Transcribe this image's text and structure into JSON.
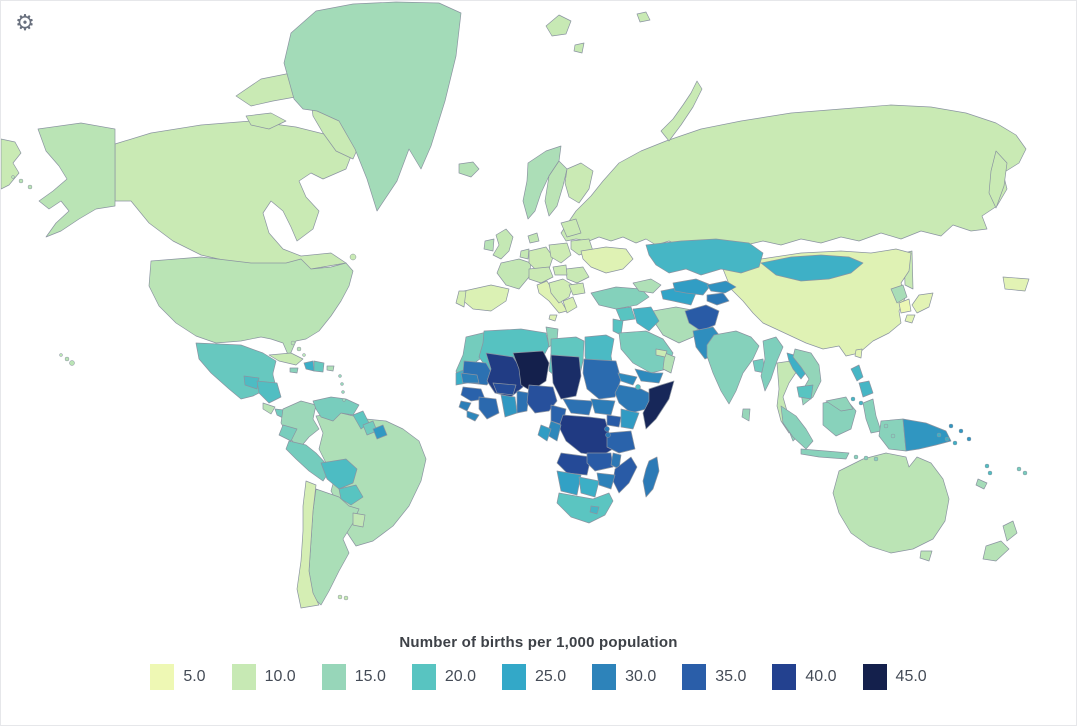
{
  "page": {
    "background": "#ffffff",
    "border_color": "#e6e7ea"
  },
  "toolbar": {
    "gear_icon": "settings-gear",
    "gear_glyph": "⚙"
  },
  "legend": {
    "title": "Number of births per 1,000 population",
    "bins": [
      {
        "label": "5.0",
        "value": 5,
        "color": "#eef8b4"
      },
      {
        "label": "10.0",
        "value": 10,
        "color": "#c7e9b4"
      },
      {
        "label": "15.0",
        "value": 15,
        "color": "#97d6b9"
      },
      {
        "label": "20.0",
        "value": 20,
        "color": "#58c4c1"
      },
      {
        "label": "25.0",
        "value": 25,
        "color": "#33a8c8"
      },
      {
        "label": "30.0",
        "value": 30,
        "color": "#2d83ba"
      },
      {
        "label": "35.0",
        "value": 35,
        "color": "#2a5ea9"
      },
      {
        "label": "40.0",
        "value": 40,
        "color": "#23418f"
      },
      {
        "label": "45.0",
        "value": 45,
        "color": "#14204c"
      }
    ]
  },
  "map": {
    "ocean_color": "#ffffff",
    "border_color": "#8b94a1",
    "default_land_value": 10
  },
  "chart_data": {
    "type": "choropleth",
    "title": "Number of births per 1,000 population",
    "unit": "births per 1,000 population",
    "legend_position": "bottom",
    "color_scale": {
      "anchors": [
        5,
        10,
        15,
        20,
        25,
        30,
        35,
        40,
        45
      ],
      "colors": [
        "#eef8b4",
        "#c7e9b4",
        "#97d6b9",
        "#58c4c1",
        "#33a8c8",
        "#2d83ba",
        "#2a5ea9",
        "#23418f",
        "#14204c"
      ]
    },
    "regions": {
      "greenland": 13.8,
      "canada": 9.8,
      "united-states": 11.4,
      "mexico": 18.8,
      "guatemala": 21.5,
      "honduras": 21,
      "costa-rica": 11.5,
      "panama": 18,
      "cuba": 9.8,
      "haiti": 24,
      "dominican-republic": 19,
      "jamaica": 16,
      "puerto-rico": 12.5,
      "bahamas": 11.5,
      "trinidad-and-tobago": 14,
      "lesser-antilles": 15,
      "colombia": 14.5,
      "venezuela": 17.5,
      "guyana": 19.5,
      "suriname": 18,
      "french-guiana": 27,
      "ecuador": 17.5,
      "peru": 17.8,
      "brazil": 12.6,
      "bolivia": 21.5,
      "paraguay": 20,
      "chile": 8.2,
      "argentina": 13,
      "uruguay": 10.5,
      "falkland-islands": 10,
      "iceland": 12,
      "norway": 12.8,
      "sweden": 11.2,
      "finland": 9.6,
      "denmark": 10.4,
      "united-kingdom": 10.3,
      "ireland": 11.6,
      "france": 10.4,
      "germany": 9.2,
      "benelux": 10.2,
      "poland": 9.2,
      "central-europe": 9.6,
      "spain": 7.4,
      "portugal": 8.1,
      "italy": 6.9,
      "balkans": 8.8,
      "greece": 7.7,
      "romania": 9.9,
      "hungary": 9.4,
      "bulgaria": 8.7,
      "belarus": 9.4,
      "baltic-states": 9.6,
      "ukraine": 6.9,
      "russia": 9.8,
      "svalbard": 10,
      "turkey": 16.5,
      "caucasus": 12.5,
      "kazakhstan": 22.5,
      "turkmenistan": 25.5,
      "uzbekistan": 26.5,
      "kyrgyzstan": 28,
      "tajikistan": 31.5,
      "mongolia": 23.5,
      "china": 6.9,
      "north-korea": 13.2,
      "south-korea": 5.2,
      "japan": 6.6,
      "taiwan": 6.5,
      "india": 16.4,
      "bangladesh": 18.2,
      "sri-lanka": 15,
      "myanmar": 17,
      "thailand": 10.2,
      "laos": 23.5,
      "vietnam": 15.3,
      "cambodia": 20,
      "malaysia": 15.6,
      "indonesia": 16.2,
      "philippines": 22.5,
      "papua-new-guinea": 27.5,
      "afghanistan": 35.5,
      "pakistan": 28.5,
      "iran": 12.8,
      "iraq": 23,
      "syria": 20,
      "israel-jordan": 20.3,
      "saudi-arabia": 17.3,
      "yemen": 29,
      "oman": 12,
      "uae-qatar": 9.5,
      "morocco": 17.8,
      "western-sahara": 24,
      "algeria": 20.3,
      "tunisia": 15.8,
      "libya": 19.3,
      "egypt": 21.8,
      "mauritania": 32.5,
      "mali": 40.8,
      "niger": 45.5,
      "chad": 43,
      "sudan": 33.2,
      "eritrea": 29,
      "djibouti": 21,
      "ethiopia": 31.5,
      "somalia": 44,
      "senegal": 30.5,
      "guinea": 34.5,
      "sierra-leone": 30.5,
      "liberia": 29.5,
      "ivory-coast": 33.5,
      "burkina-faso": 38,
      "ghana": 27.2,
      "togo-benin": 32.5,
      "nigeria": 37.5,
      "cameroon": 34.5,
      "central-african-republic": 32.5,
      "south-sudan": 31,
      "uganda": 35.5,
      "kenya": 26.8,
      "rwanda-burundi": 31.5,
      "tanzania": 34.3,
      "dr-congo": 41,
      "congo": 29.5,
      "gabon": 26.5,
      "angola": 38.5,
      "zambia": 35.5,
      "malawi": 31.5,
      "mozambique": 35.5,
      "zimbabwe": 30.3,
      "namibia": 26,
      "botswana": 23.8,
      "south-africa": 19.8,
      "lesotho": 22.5,
      "madagascar": 31.2,
      "australia": 11.2,
      "new-zealand": 11.8,
      "fiji": 17.5,
      "new-caledonia": 13.5,
      "vanuatu": 21,
      "solomon-islands": 23.5
    }
  }
}
